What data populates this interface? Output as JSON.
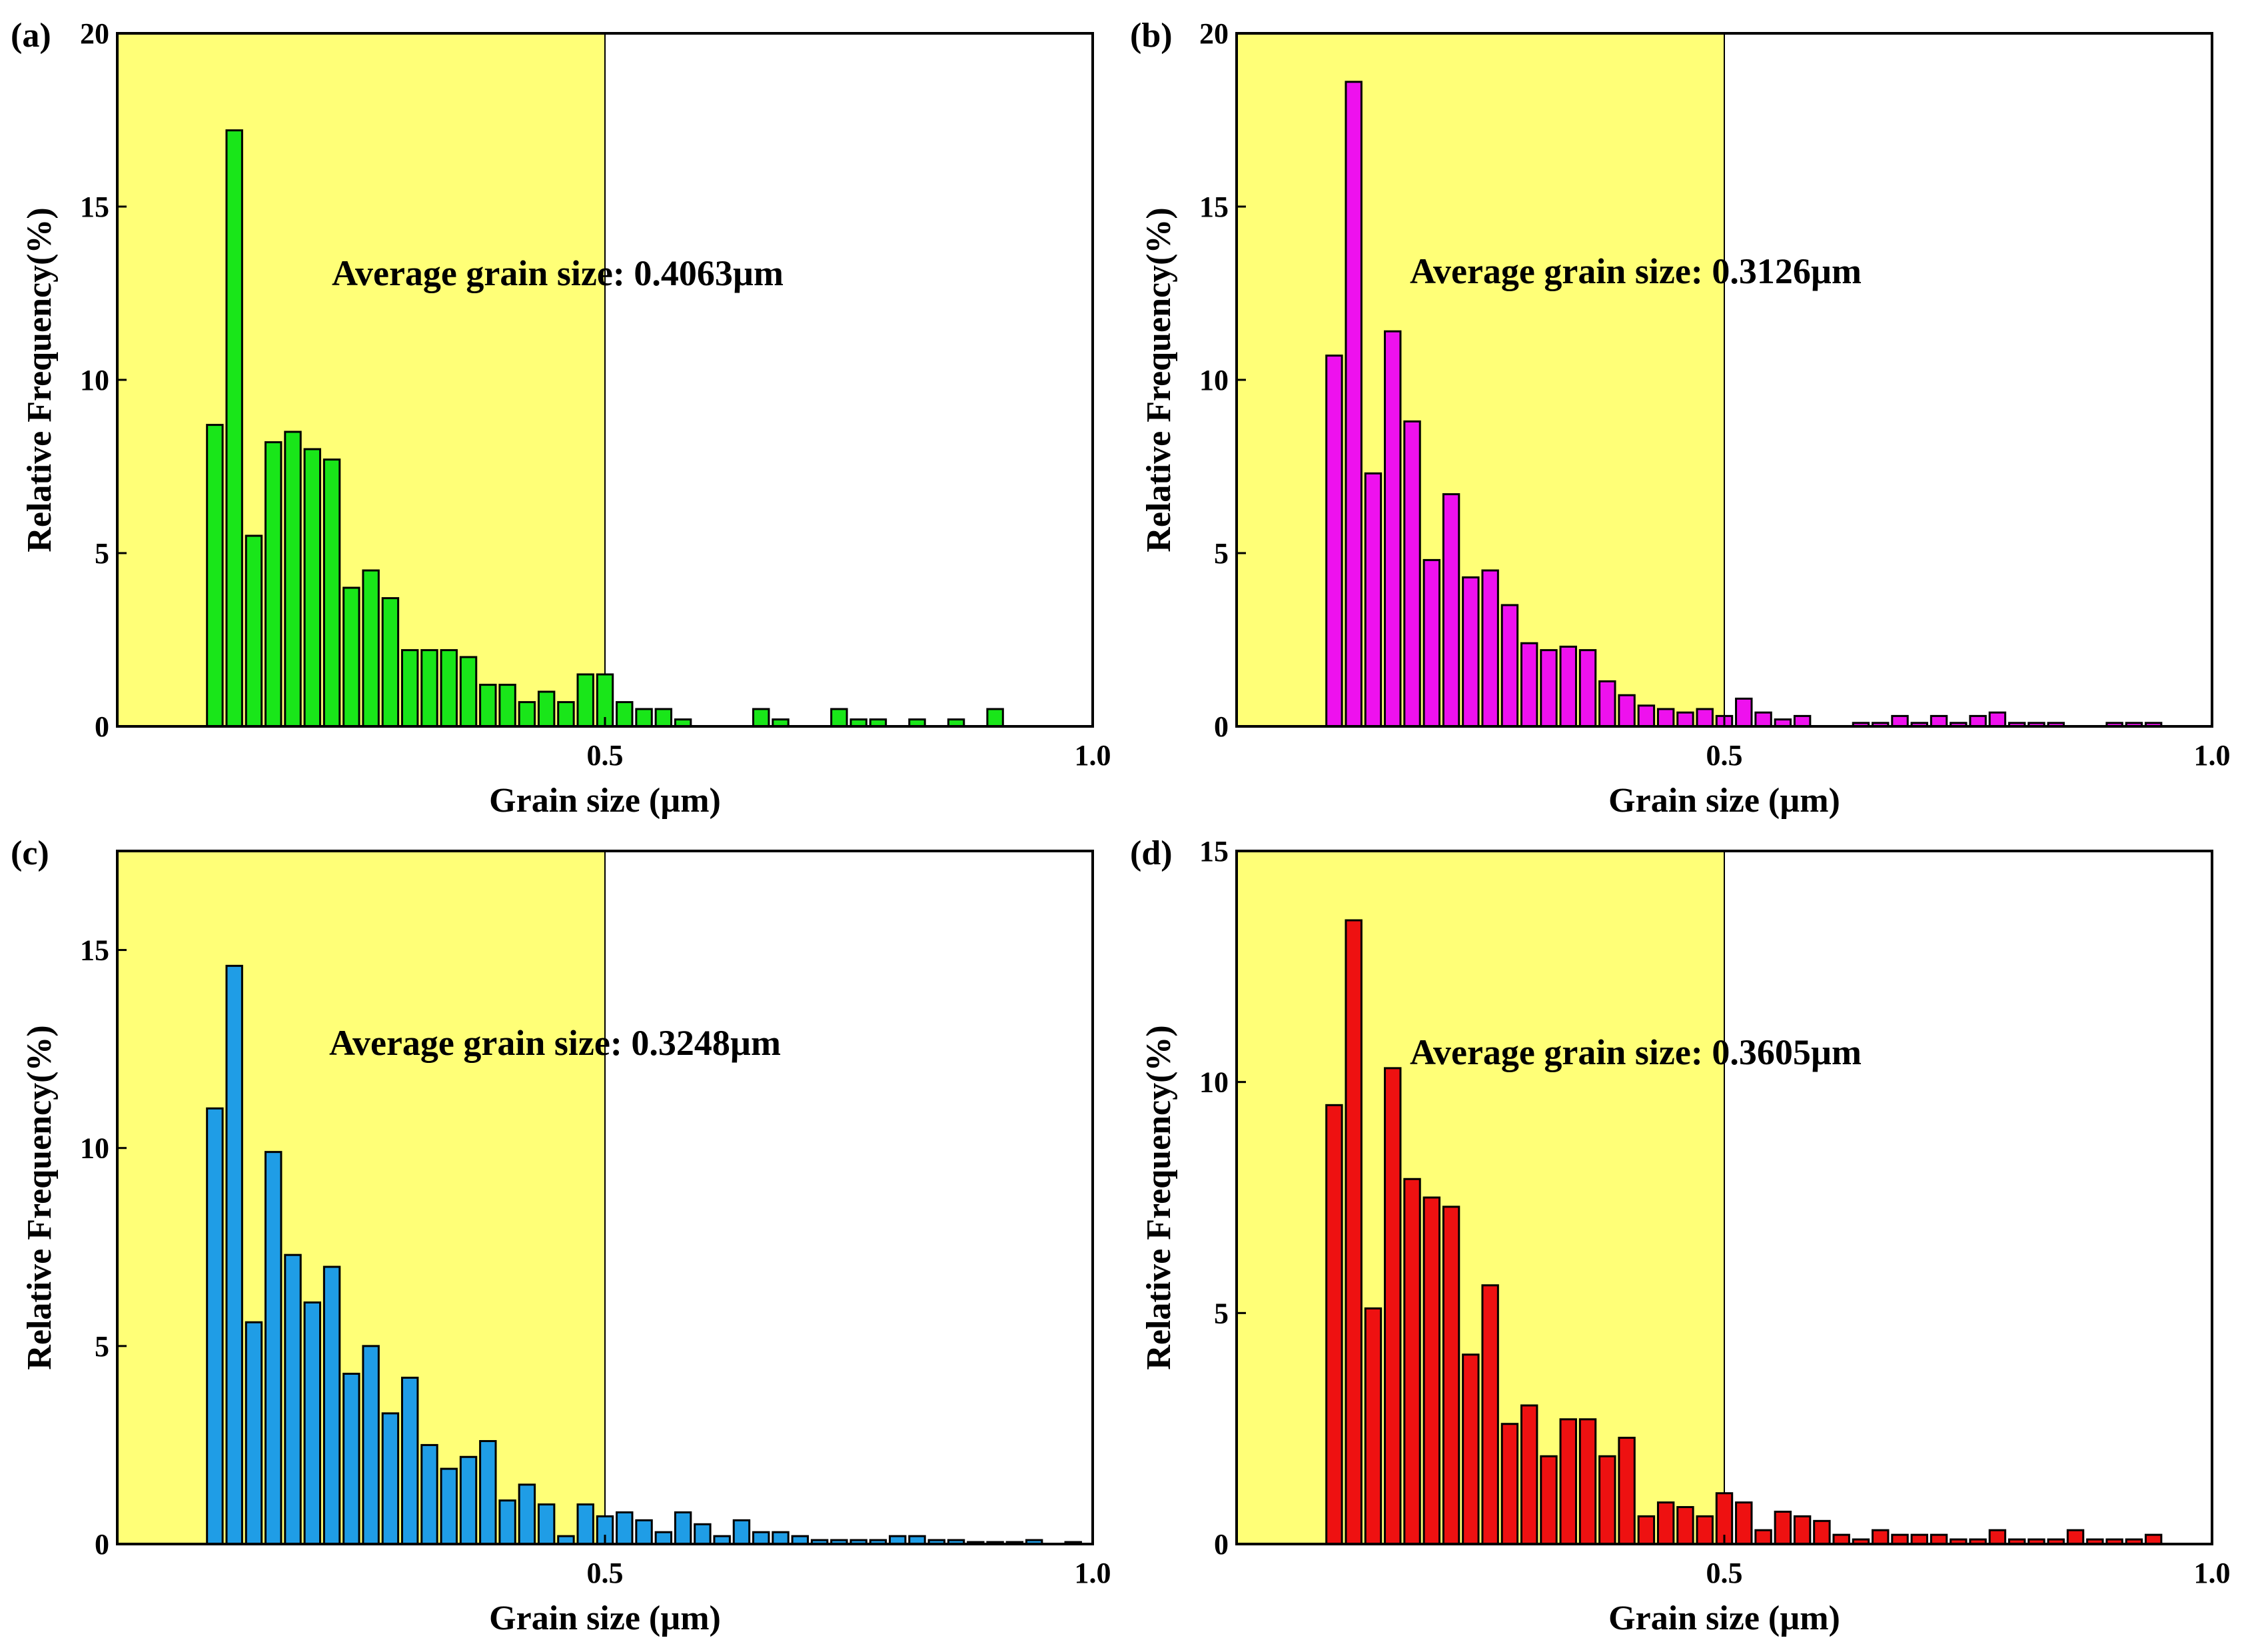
{
  "chart_data": [
    {
      "panel_label": "(a)",
      "type": "bar",
      "bar_color": "#19e619",
      "highlight_color": "#ffff77",
      "highlight_range": [
        0,
        0.5
      ],
      "annotation": "Average grain size: 0.4063µm",
      "xlabel": "Grain size (µm)",
      "ylabel": "Relative Frequency(%)",
      "xlim": [
        0,
        1.0
      ],
      "ylim": [
        0,
        20
      ],
      "xticks": [
        {
          "v": 0.5,
          "label": "0.5"
        },
        {
          "v": 1.0,
          "label": "1.0"
        }
      ],
      "yticks": [
        {
          "v": 0,
          "label": "0"
        },
        {
          "v": 5,
          "label": "5"
        },
        {
          "v": 10,
          "label": "10"
        },
        {
          "v": 15,
          "label": "15"
        },
        {
          "v": 20,
          "label": "20"
        }
      ],
      "bar_width": 0.016,
      "x": [
        0.1,
        0.12,
        0.14,
        0.16,
        0.18,
        0.2,
        0.22,
        0.24,
        0.26,
        0.28,
        0.3,
        0.32,
        0.34,
        0.36,
        0.38,
        0.4,
        0.42,
        0.44,
        0.46,
        0.48,
        0.5,
        0.52,
        0.54,
        0.56,
        0.58,
        0.6,
        0.62,
        0.64,
        0.66,
        0.68,
        0.7,
        0.72,
        0.74,
        0.76,
        0.78,
        0.8,
        0.82,
        0.84,
        0.86,
        0.88,
        0.9,
        0.92,
        0.94
      ],
      "values": [
        8.7,
        17.2,
        5.5,
        8.2,
        8.5,
        8.0,
        7.7,
        4.0,
        4.5,
        3.7,
        2.2,
        2.2,
        2.2,
        2.0,
        1.2,
        1.2,
        0.7,
        1.0,
        0.7,
        1.5,
        1.5,
        0.7,
        0.5,
        0.5,
        0.2,
        0.0,
        0.0,
        0.0,
        0.5,
        0.2,
        0.0,
        0.0,
        0.5,
        0.2,
        0.2,
        0.0,
        0.2,
        0.0,
        0.2,
        0.0,
        0.5,
        0.0,
        0.0
      ]
    },
    {
      "panel_label": "(b)",
      "type": "bar",
      "bar_color": "#ee11ee",
      "highlight_color": "#ffff77",
      "highlight_range": [
        0,
        0.5
      ],
      "annotation": "Average grain size: 0.3126µm",
      "xlabel": "Grain size (µm)",
      "ylabel": "Relative Frequency(%)",
      "xlim": [
        0,
        1.0
      ],
      "ylim": [
        0,
        20
      ],
      "xticks": [
        {
          "v": 0.5,
          "label": "0.5"
        },
        {
          "v": 1.0,
          "label": "1.0"
        }
      ],
      "yticks": [
        {
          "v": 0,
          "label": "0"
        },
        {
          "v": 5,
          "label": "5"
        },
        {
          "v": 10,
          "label": "10"
        },
        {
          "v": 15,
          "label": "15"
        },
        {
          "v": 20,
          "label": "20"
        }
      ],
      "bar_width": 0.016,
      "x": [
        0.1,
        0.12,
        0.14,
        0.16,
        0.18,
        0.2,
        0.22,
        0.24,
        0.26,
        0.28,
        0.3,
        0.32,
        0.34,
        0.36,
        0.38,
        0.4,
        0.42,
        0.44,
        0.46,
        0.48,
        0.5,
        0.52,
        0.54,
        0.56,
        0.58,
        0.6,
        0.62,
        0.64,
        0.66,
        0.68,
        0.7,
        0.72,
        0.74,
        0.76,
        0.78,
        0.8,
        0.82,
        0.84,
        0.86,
        0.88,
        0.9,
        0.92,
        0.94
      ],
      "values": [
        10.7,
        18.6,
        7.3,
        11.4,
        8.8,
        4.8,
        6.7,
        4.3,
        4.5,
        3.5,
        2.4,
        2.2,
        2.3,
        2.2,
        1.3,
        0.9,
        0.6,
        0.5,
        0.4,
        0.5,
        0.3,
        0.8,
        0.4,
        0.2,
        0.3,
        0.0,
        0.0,
        0.1,
        0.1,
        0.3,
        0.1,
        0.3,
        0.1,
        0.3,
        0.4,
        0.1,
        0.1,
        0.1,
        0.0,
        0.0,
        0.1,
        0.1,
        0.1
      ]
    },
    {
      "panel_label": "(c)",
      "type": "bar",
      "bar_color": "#1f9de6",
      "highlight_color": "#ffff77",
      "highlight_range": [
        0,
        0.5
      ],
      "annotation": "Average grain size: 0.3248µm",
      "xlabel": "Grain size (µm)",
      "ylabel": "Relative Frequency(%)",
      "xlim": [
        0,
        1.0
      ],
      "ylim": [
        0,
        17.5
      ],
      "xticks": [
        {
          "v": 0.5,
          "label": "0.5"
        },
        {
          "v": 1.0,
          "label": "1.0"
        }
      ],
      "yticks": [
        {
          "v": 0,
          "label": "0"
        },
        {
          "v": 5,
          "label": "5"
        },
        {
          "v": 10,
          "label": "10"
        },
        {
          "v": 15,
          "label": "15"
        }
      ],
      "bar_width": 0.016,
      "x": [
        0.1,
        0.12,
        0.14,
        0.16,
        0.18,
        0.2,
        0.22,
        0.24,
        0.26,
        0.28,
        0.3,
        0.32,
        0.34,
        0.36,
        0.38,
        0.4,
        0.42,
        0.44,
        0.46,
        0.48,
        0.5,
        0.52,
        0.54,
        0.56,
        0.58,
        0.6,
        0.62,
        0.64,
        0.66,
        0.68,
        0.7,
        0.72,
        0.74,
        0.76,
        0.78,
        0.8,
        0.82,
        0.84,
        0.86,
        0.88,
        0.9,
        0.92,
        0.94,
        0.96,
        0.98
      ],
      "values": [
        11.0,
        14.6,
        5.6,
        9.9,
        7.3,
        6.1,
        7.0,
        4.3,
        5.0,
        3.3,
        4.2,
        2.5,
        1.9,
        2.2,
        2.6,
        1.1,
        1.5,
        1.0,
        0.2,
        1.0,
        0.7,
        0.8,
        0.6,
        0.3,
        0.8,
        0.5,
        0.2,
        0.6,
        0.3,
        0.3,
        0.2,
        0.1,
        0.1,
        0.1,
        0.1,
        0.2,
        0.2,
        0.1,
        0.1,
        0.05,
        0.05,
        0.05,
        0.1,
        0.0,
        0.05
      ]
    },
    {
      "panel_label": "(d)",
      "type": "bar",
      "bar_color": "#ee1111",
      "highlight_color": "#ffff77",
      "highlight_range": [
        0,
        0.5
      ],
      "annotation": "Average grain size: 0.3605µm",
      "xlabel": "Grain size (µm)",
      "ylabel": "Relative Frequency(%)",
      "xlim": [
        0,
        1.0
      ],
      "ylim": [
        0,
        15
      ],
      "xticks": [
        {
          "v": 0.5,
          "label": "0.5"
        },
        {
          "v": 1.0,
          "label": "1.0"
        }
      ],
      "yticks": [
        {
          "v": 0,
          "label": "0"
        },
        {
          "v": 5,
          "label": "5"
        },
        {
          "v": 10,
          "label": "10"
        },
        {
          "v": 15,
          "label": "15"
        }
      ],
      "bar_width": 0.016,
      "x": [
        0.1,
        0.12,
        0.14,
        0.16,
        0.18,
        0.2,
        0.22,
        0.24,
        0.26,
        0.28,
        0.3,
        0.32,
        0.34,
        0.36,
        0.38,
        0.4,
        0.42,
        0.44,
        0.46,
        0.48,
        0.5,
        0.52,
        0.54,
        0.56,
        0.58,
        0.6,
        0.62,
        0.64,
        0.66,
        0.68,
        0.7,
        0.72,
        0.74,
        0.76,
        0.78,
        0.8,
        0.82,
        0.84,
        0.86,
        0.88,
        0.9,
        0.92,
        0.94
      ],
      "values": [
        9.5,
        13.5,
        5.1,
        10.3,
        7.9,
        7.5,
        7.3,
        4.1,
        5.6,
        2.6,
        3.0,
        1.9,
        2.7,
        2.7,
        1.9,
        2.3,
        0.6,
        0.9,
        0.8,
        0.6,
        1.1,
        0.9,
        0.3,
        0.7,
        0.6,
        0.5,
        0.2,
        0.1,
        0.3,
        0.2,
        0.2,
        0.2,
        0.1,
        0.1,
        0.3,
        0.1,
        0.1,
        0.1,
        0.3,
        0.1,
        0.1,
        0.1,
        0.2
      ]
    }
  ]
}
